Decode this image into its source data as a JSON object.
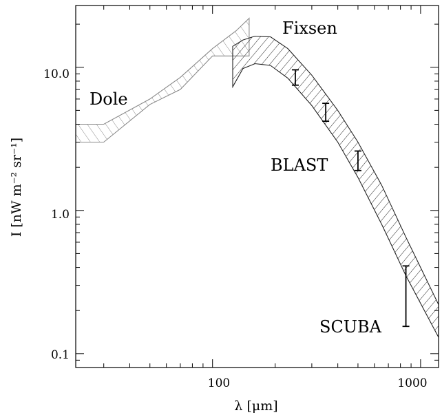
{
  "chart_data": {
    "type": "line",
    "xlabel": "λ [μm]",
    "ylabel": "I [nW m⁻² sr⁻¹]",
    "xscale": "log",
    "yscale": "log",
    "xlim": [
      22,
      1220
    ],
    "ylim": [
      0.08,
      27
    ],
    "x_ticks": [
      {
        "value": 100,
        "label": "100"
      },
      {
        "value": 1000,
        "label": "1000"
      }
    ],
    "y_ticks": [
      {
        "value": 0.1,
        "label": "0.1"
      },
      {
        "value": 1.0,
        "label": "1.0"
      },
      {
        "value": 10.0,
        "label": "10.0"
      }
    ],
    "grid": false,
    "series": [
      {
        "name": "Dole",
        "style": "hatched band (gray)",
        "color": "#888888",
        "x": [
          22,
          30,
          50,
          70,
          100,
          130,
          150
        ],
        "upper": [
          4.0,
          4.0,
          6.0,
          8.5,
          13.5,
          18.0,
          22.0
        ],
        "lower": [
          3.0,
          3.0,
          5.5,
          7.0,
          12.0,
          12.0,
          12.0
        ]
      },
      {
        "name": "Fixsen",
        "style": "hatched band (black)",
        "color": "#222222",
        "x": [
          125,
          140,
          160,
          190,
          230,
          300,
          400,
          500,
          650,
          850,
          1220
        ],
        "upper": [
          14.0,
          15.5,
          16.5,
          16.3,
          13.5,
          8.8,
          5.0,
          3.0,
          1.5,
          0.65,
          0.22
        ],
        "lower": [
          7.3,
          9.8,
          10.6,
          10.3,
          8.4,
          5.4,
          3.0,
          1.7,
          0.8,
          0.35,
          0.13
        ]
      },
      {
        "name": "BLAST",
        "style": "error bars",
        "color": "#000000",
        "points": [
          {
            "x": 250,
            "y": 8.5,
            "low": 7.5,
            "high": 9.6
          },
          {
            "x": 350,
            "y": 4.8,
            "low": 4.2,
            "high": 5.6
          },
          {
            "x": 500,
            "y": 2.2,
            "low": 1.9,
            "high": 2.6
          }
        ]
      },
      {
        "name": "SCUBA",
        "style": "error bars",
        "color": "#000000",
        "points": [
          {
            "x": 850,
            "y": 0.25,
            "low": 0.155,
            "high": 0.41
          }
        ]
      }
    ],
    "annotations": [
      {
        "text": "Dole",
        "x": 23,
        "y": 7.5
      },
      {
        "text": "Fixsen",
        "x": 130,
        "y": 21
      },
      {
        "text": "BLAST",
        "x": 165,
        "y": 2.7
      },
      {
        "text": "SCUBA",
        "x": 330,
        "y": 0.155
      }
    ]
  }
}
